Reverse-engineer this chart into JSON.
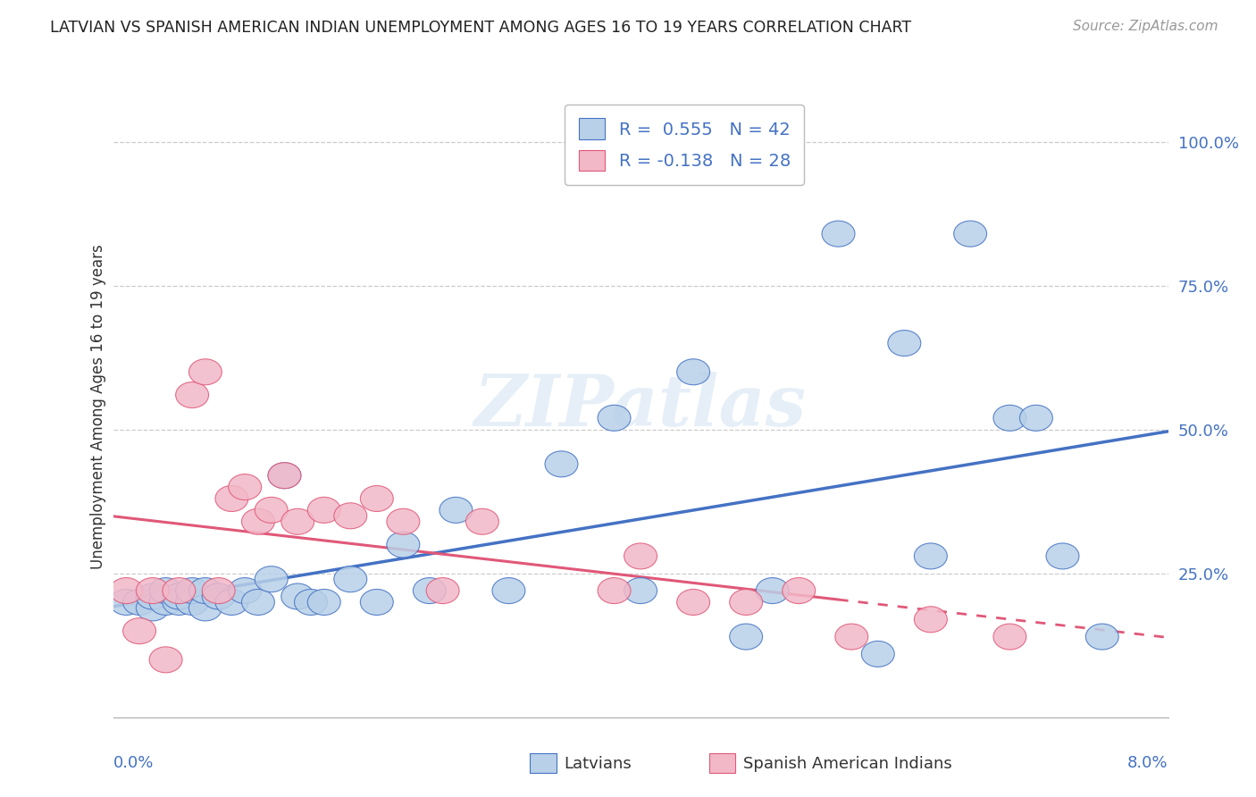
{
  "title": "LATVIAN VS SPANISH AMERICAN INDIAN UNEMPLOYMENT AMONG AGES 16 TO 19 YEARS CORRELATION CHART",
  "source": "Source: ZipAtlas.com",
  "ylabel": "Unemployment Among Ages 16 to 19 years",
  "ytick_labels": [
    "100.0%",
    "75.0%",
    "50.0%",
    "25.0%"
  ],
  "ytick_values": [
    1.0,
    0.75,
    0.5,
    0.25
  ],
  "xmin": 0.0,
  "xmax": 0.08,
  "ymin": 0.0,
  "ymax": 1.08,
  "latvian_R": 0.555,
  "latvian_N": 42,
  "spanish_R": -0.138,
  "spanish_N": 28,
  "latvian_color": "#b8d0e8",
  "spanish_color": "#f2b8c8",
  "trend_blue": "#4472c4",
  "trend_pink": "#e05878",
  "watermark_text": "ZIPatlas",
  "latvian_x": [
    0.001,
    0.002,
    0.003,
    0.003,
    0.004,
    0.004,
    0.005,
    0.005,
    0.006,
    0.006,
    0.007,
    0.007,
    0.008,
    0.009,
    0.01,
    0.011,
    0.012,
    0.013,
    0.014,
    0.015,
    0.016,
    0.018,
    0.02,
    0.022,
    0.024,
    0.026,
    0.03,
    0.034,
    0.038,
    0.04,
    0.044,
    0.048,
    0.05,
    0.055,
    0.058,
    0.06,
    0.062,
    0.065,
    0.068,
    0.07,
    0.072,
    0.075
  ],
  "latvian_y": [
    0.2,
    0.2,
    0.19,
    0.21,
    0.2,
    0.22,
    0.2,
    0.21,
    0.2,
    0.22,
    0.19,
    0.22,
    0.21,
    0.2,
    0.22,
    0.2,
    0.24,
    0.42,
    0.21,
    0.2,
    0.2,
    0.24,
    0.2,
    0.3,
    0.22,
    0.36,
    0.22,
    0.44,
    0.52,
    0.22,
    0.6,
    0.14,
    0.22,
    0.84,
    0.11,
    0.65,
    0.28,
    0.84,
    0.52,
    0.52,
    0.28,
    0.14
  ],
  "spanish_x": [
    0.001,
    0.002,
    0.003,
    0.004,
    0.005,
    0.006,
    0.007,
    0.008,
    0.009,
    0.01,
    0.011,
    0.012,
    0.013,
    0.014,
    0.016,
    0.018,
    0.02,
    0.022,
    0.025,
    0.028,
    0.038,
    0.04,
    0.044,
    0.048,
    0.052,
    0.056,
    0.062,
    0.068
  ],
  "spanish_y": [
    0.22,
    0.15,
    0.22,
    0.1,
    0.22,
    0.56,
    0.6,
    0.22,
    0.38,
    0.4,
    0.34,
    0.36,
    0.42,
    0.34,
    0.36,
    0.35,
    0.38,
    0.34,
    0.22,
    0.34,
    0.22,
    0.28,
    0.2,
    0.2,
    0.22,
    0.14,
    0.17,
    0.14
  ],
  "legend_R1_color": "#4472c4",
  "legend_R2_color": "#e05878"
}
